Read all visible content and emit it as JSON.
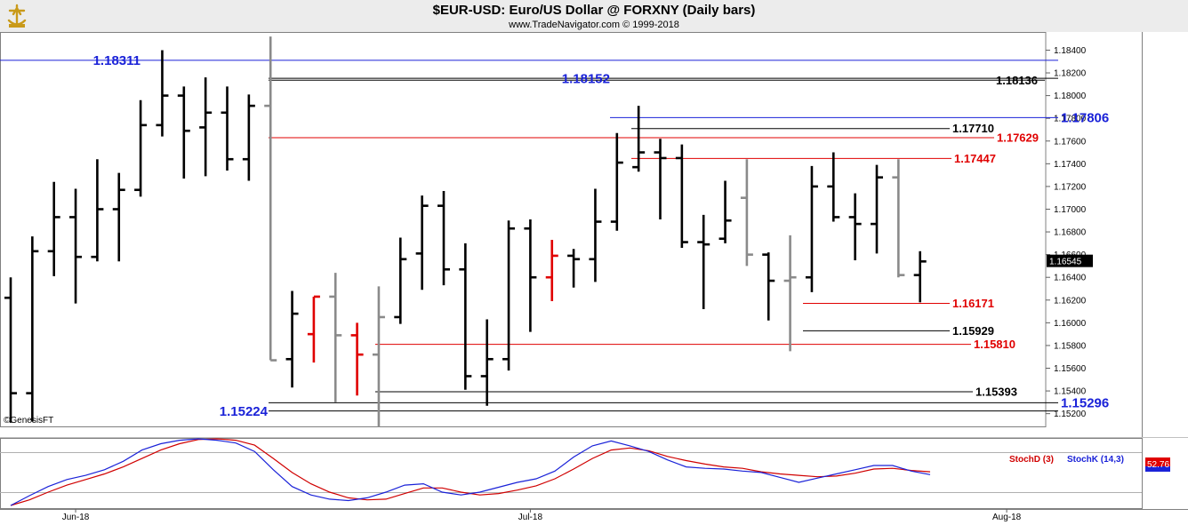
{
  "header": {
    "title": "$EUR-USD:  Euro/US Dollar @ FORXNY  (Daily bars)",
    "subtitle": "www.TradeNavigator.com © 1999-2018"
  },
  "colors": {
    "up_bar": "#000000",
    "down_bar": "#8a8a8a",
    "red_bar": "#e00000",
    "blue_label": "#1a22d8",
    "red_label": "#e00000",
    "black_label": "#000000",
    "stoch_d": "#d00000",
    "stoch_k": "#1a22d8",
    "price_badge_bg": "#000000",
    "stoch_badge_bg": "#e00000"
  },
  "chart_data": [
    {
      "type": "bar",
      "subtype": "ohlc",
      "symbol": "$EUR-USD",
      "x_tick_labels": [
        "Jun-18",
        "Jul-18",
        "Aug-18"
      ],
      "y_tick_labels": [
        "1.15200",
        "1.15400",
        "1.15600",
        "1.15800",
        "1.16000",
        "1.16200",
        "1.16400",
        "1.16600",
        "1.16800",
        "1.17000",
        "1.17200",
        "1.17400",
        "1.17600",
        "1.17800",
        "1.18000",
        "1.18200",
        "1.18400"
      ],
      "ylim": [
        1.1508,
        1.1856
      ],
      "last_price": "1.16545",
      "watermark": "©GenesisFT",
      "bars": [
        {
          "date": "2018-05-29",
          "o": 1.1622,
          "h": 1.164,
          "l": 1.1512,
          "c": 1.1538,
          "color": "black"
        },
        {
          "date": "2018-05-30",
          "o": 1.1538,
          "h": 1.1676,
          "l": 1.1513,
          "c": 1.1663,
          "color": "black"
        },
        {
          "date": "2018-05-31",
          "o": 1.1663,
          "h": 1.1724,
          "l": 1.1641,
          "c": 1.1693,
          "color": "black"
        },
        {
          "date": "2018-06-01",
          "o": 1.1693,
          "h": 1.1718,
          "l": 1.1617,
          "c": 1.1658,
          "color": "black"
        },
        {
          "date": "2018-06-04",
          "o": 1.1658,
          "h": 1.1744,
          "l": 1.1654,
          "c": 1.17,
          "color": "black"
        },
        {
          "date": "2018-06-05",
          "o": 1.17,
          "h": 1.1732,
          "l": 1.1654,
          "c": 1.1717,
          "color": "black"
        },
        {
          "date": "2018-06-06",
          "o": 1.1717,
          "h": 1.1796,
          "l": 1.1711,
          "c": 1.1774,
          "color": "black"
        },
        {
          "date": "2018-06-07",
          "o": 1.1774,
          "h": 1.184,
          "l": 1.1764,
          "c": 1.18,
          "color": "black"
        },
        {
          "date": "2018-06-08",
          "o": 1.18,
          "h": 1.1808,
          "l": 1.1727,
          "c": 1.1769,
          "color": "black"
        },
        {
          "date": "2018-06-11",
          "o": 1.1772,
          "h": 1.1816,
          "l": 1.1729,
          "c": 1.1785,
          "color": "black"
        },
        {
          "date": "2018-06-12",
          "o": 1.1785,
          "h": 1.1808,
          "l": 1.1734,
          "c": 1.1744,
          "color": "black"
        },
        {
          "date": "2018-06-13",
          "o": 1.1744,
          "h": 1.1801,
          "l": 1.1725,
          "c": 1.1791,
          "color": "black"
        },
        {
          "date": "2018-06-14",
          "o": 1.1791,
          "h": 1.1852,
          "l": 1.1567,
          "c": 1.1567,
          "color": "gray"
        },
        {
          "date": "2018-06-15",
          "o": 1.1568,
          "h": 1.1628,
          "l": 1.1543,
          "c": 1.1608,
          "color": "black"
        },
        {
          "date": "2018-06-18",
          "o": 1.159,
          "h": 1.1623,
          "l": 1.1565,
          "c": 1.1623,
          "color": "red"
        },
        {
          "date": "2018-06-19",
          "o": 1.1623,
          "h": 1.1644,
          "l": 1.153,
          "c": 1.1589,
          "color": "gray"
        },
        {
          "date": "2018-06-20",
          "o": 1.1589,
          "h": 1.16,
          "l": 1.1536,
          "c": 1.1572,
          "color": "red"
        },
        {
          "date": "2018-06-21",
          "o": 1.1572,
          "h": 1.1632,
          "l": 1.1508,
          "c": 1.1605,
          "color": "gray"
        },
        {
          "date": "2018-06-22",
          "o": 1.1605,
          "h": 1.1675,
          "l": 1.1599,
          "c": 1.1656,
          "color": "black"
        },
        {
          "date": "2018-06-25",
          "o": 1.1661,
          "h": 1.1712,
          "l": 1.1629,
          "c": 1.1703,
          "color": "black"
        },
        {
          "date": "2018-06-26",
          "o": 1.1703,
          "h": 1.1716,
          "l": 1.1633,
          "c": 1.1647,
          "color": "black"
        },
        {
          "date": "2018-06-27",
          "o": 1.1647,
          "h": 1.167,
          "l": 1.1541,
          "c": 1.1553,
          "color": "black"
        },
        {
          "date": "2018-06-28",
          "o": 1.1553,
          "h": 1.1603,
          "l": 1.1527,
          "c": 1.1568,
          "color": "black"
        },
        {
          "date": "2018-06-29",
          "o": 1.1568,
          "h": 1.169,
          "l": 1.1558,
          "c": 1.1683,
          "color": "black"
        },
        {
          "date": "2018-07-02",
          "o": 1.1683,
          "h": 1.1691,
          "l": 1.1592,
          "c": 1.164,
          "color": "black"
        },
        {
          "date": "2018-07-03",
          "o": 1.164,
          "h": 1.1673,
          "l": 1.1619,
          "c": 1.1659,
          "color": "red"
        },
        {
          "date": "2018-07-04",
          "o": 1.1659,
          "h": 1.1665,
          "l": 1.1631,
          "c": 1.1656,
          "color": "black"
        },
        {
          "date": "2018-07-05",
          "o": 1.1656,
          "h": 1.1718,
          "l": 1.1636,
          "c": 1.1689,
          "color": "black"
        },
        {
          "date": "2018-07-06",
          "o": 1.1689,
          "h": 1.1767,
          "l": 1.1681,
          "c": 1.1741,
          "color": "black"
        },
        {
          "date": "2018-07-09",
          "o": 1.1737,
          "h": 1.1791,
          "l": 1.1733,
          "c": 1.175,
          "color": "black"
        },
        {
          "date": "2018-07-10",
          "o": 1.175,
          "h": 1.1762,
          "l": 1.1691,
          "c": 1.1745,
          "color": "black"
        },
        {
          "date": "2018-07-11",
          "o": 1.1745,
          "h": 1.1757,
          "l": 1.1666,
          "c": 1.1671,
          "color": "black"
        },
        {
          "date": "2018-07-12",
          "o": 1.1671,
          "h": 1.1695,
          "l": 1.1612,
          "c": 1.1669,
          "color": "black"
        },
        {
          "date": "2018-07-13",
          "o": 1.1674,
          "h": 1.1725,
          "l": 1.167,
          "c": 1.169,
          "color": "black"
        },
        {
          "date": "2018-07-16",
          "o": 1.171,
          "h": 1.1744,
          "l": 1.165,
          "c": 1.166,
          "color": "gray"
        },
        {
          "date": "2018-07-17",
          "o": 1.166,
          "h": 1.1662,
          "l": 1.1602,
          "c": 1.1637,
          "color": "black"
        },
        {
          "date": "2018-07-18",
          "o": 1.1637,
          "h": 1.1677,
          "l": 1.1575,
          "c": 1.164,
          "color": "gray"
        },
        {
          "date": "2018-07-19",
          "o": 1.164,
          "h": 1.1738,
          "l": 1.1627,
          "c": 1.172,
          "color": "black"
        },
        {
          "date": "2018-07-20",
          "o": 1.172,
          "h": 1.175,
          "l": 1.1689,
          "c": 1.1693,
          "color": "black"
        },
        {
          "date": "2018-07-23",
          "o": 1.1693,
          "h": 1.1714,
          "l": 1.1655,
          "c": 1.1687,
          "color": "black"
        },
        {
          "date": "2018-07-24",
          "o": 1.1687,
          "h": 1.1739,
          "l": 1.1661,
          "c": 1.1728,
          "color": "black"
        },
        {
          "date": "2018-07-25",
          "o": 1.1728,
          "h": 1.1744,
          "l": 1.164,
          "c": 1.1642,
          "color": "gray"
        },
        {
          "date": "2018-07-26",
          "o": 1.1642,
          "h": 1.1663,
          "l": 1.1618,
          "c": 1.1654,
          "color": "black"
        }
      ],
      "horizontal_lines": [
        {
          "price": "1.18311",
          "label_color": "blue",
          "line_color": "blue"
        },
        {
          "price": "1.18152",
          "label_color": "blue",
          "line_color": "black"
        },
        {
          "price": "1.18136",
          "label_color": "black",
          "line_color": "black"
        },
        {
          "price": "1.17806",
          "label_color": "blue",
          "line_color": "blue"
        },
        {
          "price": "1.17710",
          "label_color": "black",
          "line_color": "black"
        },
        {
          "price": "1.17629",
          "label_color": "red",
          "line_color": "red"
        },
        {
          "price": "1.17447",
          "label_color": "red",
          "line_color": "red"
        },
        {
          "price": "1.16171",
          "label_color": "red",
          "line_color": "red"
        },
        {
          "price": "1.15929",
          "label_color": "black",
          "line_color": "black"
        },
        {
          "price": "1.15810",
          "label_color": "red",
          "line_color": "red"
        },
        {
          "price": "1.15393",
          "label_color": "black",
          "line_color": "black"
        },
        {
          "price": "1.15296",
          "label_color": "blue",
          "line_color": "black"
        },
        {
          "price": "1.15224",
          "label_color": "blue",
          "line_color": "black"
        }
      ]
    },
    {
      "type": "line",
      "legend": [
        "StochD (3)",
        "StochK (14,3)"
      ],
      "last_value": "52.76",
      "ylim": [
        0,
        100
      ],
      "series": [
        {
          "name": "StochD (3)",
          "values": [
            5,
            13,
            24,
            34,
            42,
            50,
            60,
            72,
            84,
            93,
            99,
            100,
            98,
            91,
            72,
            52,
            36,
            24,
            16,
            13,
            14,
            22,
            30,
            30,
            24,
            20,
            22,
            27,
            33,
            43,
            57,
            72,
            84,
            87,
            83,
            75,
            69,
            64,
            60,
            58,
            53,
            50,
            48,
            46,
            47,
            51,
            57,
            58,
            55,
            53
          ]
        },
        {
          "name": "StochK (14,3)",
          "values": [
            5,
            19,
            32,
            42,
            48,
            56,
            68,
            84,
            93,
            98,
            100,
            98,
            94,
            82,
            56,
            32,
            20,
            14,
            12,
            16,
            24,
            34,
            36,
            24,
            20,
            24,
            31,
            38,
            43,
            54,
            74,
            90,
            97,
            90,
            82,
            70,
            60,
            58,
            57,
            54,
            52,
            45,
            38,
            44,
            50,
            56,
            62,
            62,
            54,
            49
          ]
        }
      ]
    }
  ]
}
